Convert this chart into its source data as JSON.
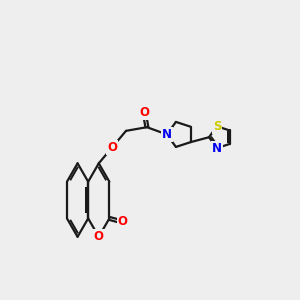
{
  "bg_color": "#eeeeee",
  "bond_color": "#1a1a1a",
  "bond_width": 1.6,
  "atom_colors": {
    "O": "#ff0000",
    "N": "#0000ee",
    "S": "#cccc00",
    "C": "#1a1a1a"
  },
  "font_size": 8.5,
  "fig_width": 3.0,
  "fig_height": 3.0,
  "dpi": 100,
  "xlim": [
    0,
    10
  ],
  "ylim": [
    0,
    10
  ]
}
